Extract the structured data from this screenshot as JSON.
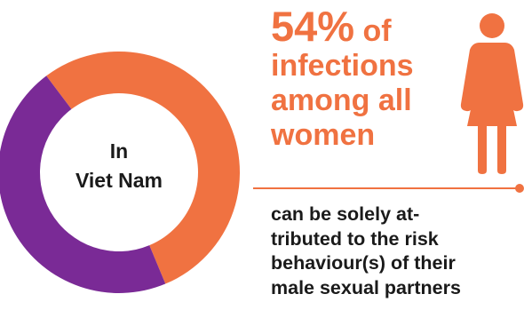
{
  "chart_data": {
    "type": "pie",
    "variant": "donut",
    "categories": [
      "orange",
      "purple"
    ],
    "values": [
      54,
      46
    ],
    "unit": "%",
    "colors": [
      "#f07241",
      "#7a2a96"
    ]
  },
  "center_label": {
    "line1": "In",
    "line2": "Viet Nam"
  },
  "headline": {
    "percent": "54%",
    "of": " of",
    "line2": "infections",
    "line3": "among all",
    "line4": "women"
  },
  "subtext": {
    "line1": "can be solely at-",
    "line2": "tributed to the risk",
    "line3": "behaviour(s) of their",
    "line4": "male sexual partners"
  },
  "icon": "woman-icon",
  "accent_color": "#f07241",
  "secondary_color": "#7a2a96"
}
